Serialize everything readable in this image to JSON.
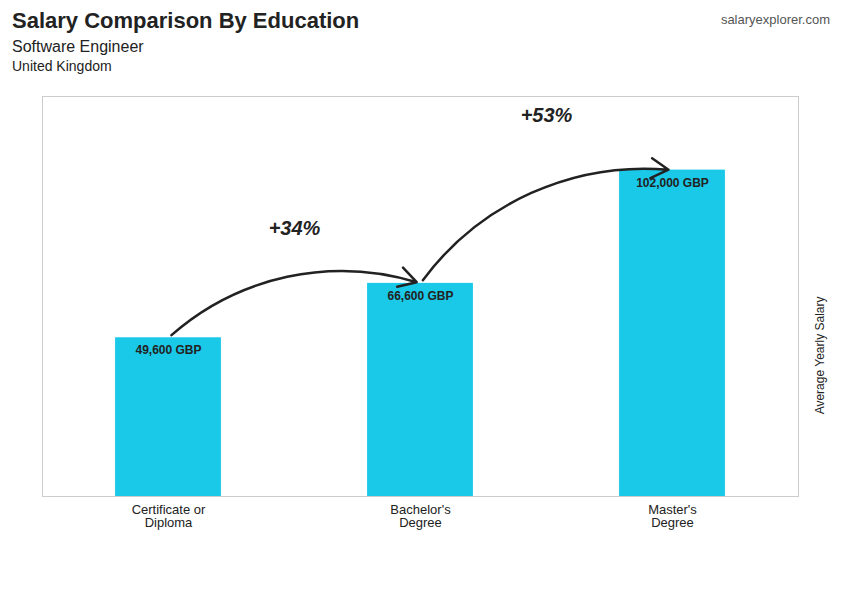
{
  "chart_data": {
    "type": "bar",
    "title": "Salary Comparison By Education",
    "subtitle": "Software Engineer",
    "categories": [
      "Certificate or\nDiploma",
      "Bachelor's\nDegree",
      "Master's\nDegree"
    ],
    "values": [
      49600,
      66600,
      102000
    ],
    "value_labels": [
      "49,600 GBP",
      "66,600 GBP",
      "102,000 GBP"
    ],
    "data_labels": true,
    "color": "#1ac8e8",
    "y_label": "Average Yearly Salary",
    "ylim": [
      0,
      125000
    ],
    "tick_labels": "x",
    "annotations": [
      {
        "text": "United Kingdom"
      },
      {
        "text": "salaryexplorer.com"
      },
      {
        "text": "+34%",
        "between": [
          "Certificate or\nDiploma",
          "Bachelor's\nDegree"
        ]
      },
      {
        "text": "+53%",
        "between": [
          "Bachelor's\nDegree",
          "Master's\nDegree"
        ]
      }
    ]
  }
}
